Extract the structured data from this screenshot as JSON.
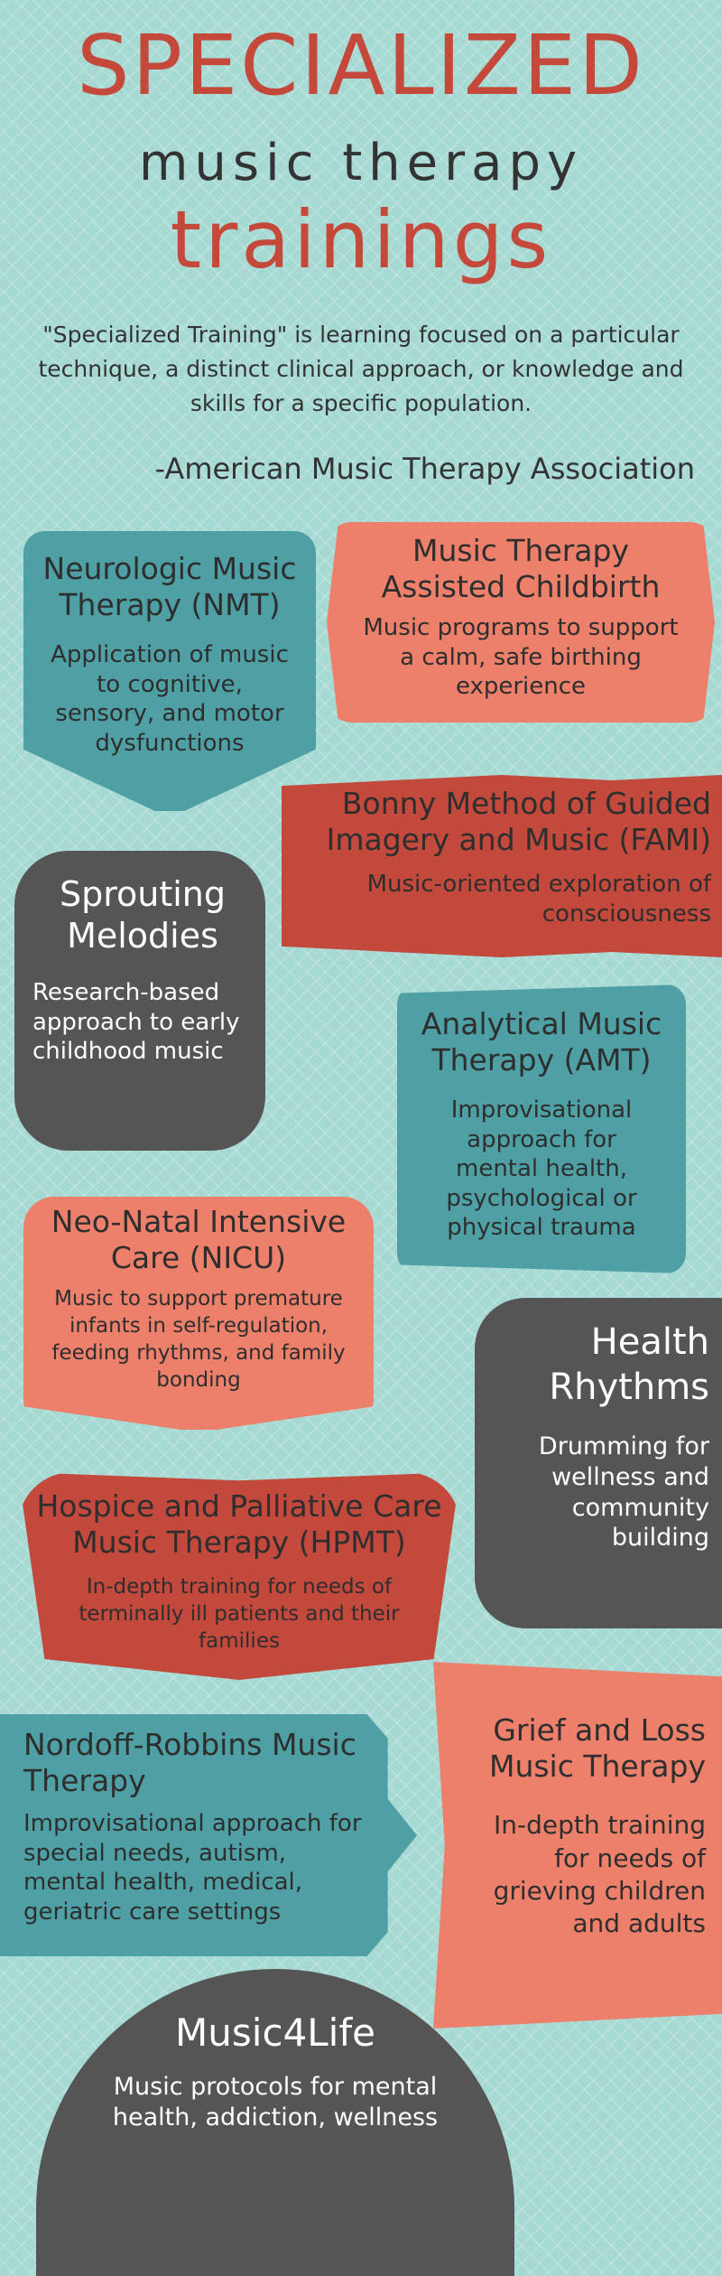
{
  "header": {
    "title_line1": "SPECIALIZED",
    "title_line2": "music therapy",
    "title_line3": "trainings",
    "quote": "\"Specialized Training\" is learning focused on a particular technique, a distinct clinical approach, or knowledge and skills for a specific population.",
    "attribution": "-American Music Therapy Association"
  },
  "cards": {
    "nmt": {
      "title": "Neurologic Music Therapy (NMT)",
      "desc": "Application of music to cognitive, sensory, and motor dysfunctions"
    },
    "childbirth": {
      "title": "Music Therapy Assisted Childbirth",
      "desc": "Music programs to support a calm, safe birthing experience"
    },
    "bonny": {
      "title": "Bonny Method of Guided Imagery and Music (FAMI)",
      "desc": "Music-oriented exploration of consciousness"
    },
    "sprouting": {
      "title": "Sprouting Melodies",
      "desc": "Research-based approach to early childhood music"
    },
    "amt": {
      "title": "Analytical Music Therapy (AMT)",
      "desc": "Improvisational approach for mental health, psychological or physical trauma"
    },
    "nicu": {
      "title": "Neo-Natal Intensive Care (NICU)",
      "desc": "Music to support premature infants in self-regulation, feeding rhythms, and family bonding"
    },
    "health": {
      "title": "Health Rhythms",
      "desc": "Drumming for wellness and community building"
    },
    "hospice": {
      "title": "Hospice and Palliative Care Music Therapy (HPMT)",
      "desc": "In-depth training for needs of terminally ill patients and their families"
    },
    "nordoff": {
      "title": "Nordoff-Robbins Music Therapy",
      "desc": "Improvisational approach for special needs, autism, mental health, medical, geriatric care settings"
    },
    "grief": {
      "title": "Grief and Loss Music Therapy",
      "desc": "In-depth training for needs of grieving children and adults"
    },
    "music4life": {
      "title": "Music4Life",
      "desc": "Music protocols for mental health, addiction, wellness"
    }
  },
  "colors": {
    "background": "#a7d9d3",
    "teal": "#4fa0a4",
    "salmon": "#ed806b",
    "red": "#c2493c",
    "dark": "#555555",
    "title_red": "#c4493b"
  }
}
